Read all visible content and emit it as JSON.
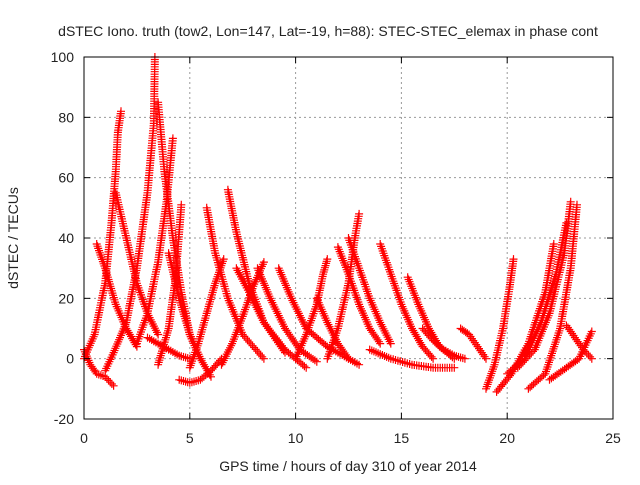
{
  "chart_data": {
    "type": "scatter",
    "title": "dSTEC Iono. truth (tow2, Lon=147, Lat=-19, h=88): STEC-STEC_elemax in phase cont",
    "xlabel": "GPS time / hours of day 310 of year 2014",
    "ylabel": "dSTEC  / TECUs",
    "xlim": [
      0,
      25
    ],
    "ylim": [
      -20,
      100
    ],
    "xticks": [
      "0",
      "5",
      "10",
      "15",
      "20",
      "25"
    ],
    "yticks": [
      "-20",
      "0",
      "20",
      "40",
      "60",
      "80",
      "100"
    ],
    "grid": true,
    "legend": "none",
    "marker": "plus",
    "color": "#ff0000",
    "series": [
      {
        "x": [
          0.0,
          0.5,
          1.0,
          1.3,
          1.5,
          1.6,
          1.75
        ],
        "y": [
          0,
          8,
          25,
          45,
          62,
          75,
          82
        ]
      },
      {
        "x": [
          0.0,
          0.3,
          0.6,
          1.0,
          1.4
        ],
        "y": [
          3,
          -2,
          -5,
          -6,
          -9
        ]
      },
      {
        "x": [
          1.0,
          1.4,
          2.0,
          2.5,
          3.0,
          3.3,
          3.35
        ],
        "y": [
          -4,
          2,
          12,
          30,
          55,
          78,
          100
        ]
      },
      {
        "x": [
          3.5,
          3.8,
          4.2,
          4.6,
          5.0,
          5.5
        ],
        "y": [
          85,
          62,
          40,
          22,
          8,
          0
        ]
      },
      {
        "x": [
          0.6,
          1.0,
          1.5,
          2.0,
          2.5
        ],
        "y": [
          38,
          30,
          18,
          10,
          4
        ]
      },
      {
        "x": [
          1.5,
          2.0,
          2.5,
          3.0,
          3.5
        ],
        "y": [
          55,
          40,
          25,
          15,
          8
        ]
      },
      {
        "x": [
          2.5,
          3.0,
          3.5,
          3.9,
          4.2
        ],
        "y": [
          5,
          15,
          32,
          52,
          73
        ]
      },
      {
        "x": [
          3.5,
          4.0,
          4.3,
          4.5,
          4.6
        ],
        "y": [
          -2,
          10,
          25,
          42,
          51
        ]
      },
      {
        "x": [
          3.0,
          3.5,
          4.0,
          4.5,
          5.0
        ],
        "y": [
          7,
          5,
          3,
          1,
          0
        ]
      },
      {
        "x": [
          4.0,
          4.5,
          5.0,
          5.5,
          6.0
        ],
        "y": [
          35,
          20,
          8,
          0,
          -6
        ]
      },
      {
        "x": [
          4.5,
          5.0,
          5.5,
          6.0,
          6.5
        ],
        "y": [
          -7,
          -8,
          -7,
          -4,
          0
        ]
      },
      {
        "x": [
          5.0,
          5.4,
          5.8,
          6.2,
          6.6
        ],
        "y": [
          -3,
          5,
          15,
          25,
          33
        ]
      },
      {
        "x": [
          5.8,
          6.2,
          6.8,
          7.5,
          8.5
        ],
        "y": [
          50,
          35,
          20,
          8,
          0
        ]
      },
      {
        "x": [
          6.8,
          7.2,
          7.8,
          8.5,
          9.5
        ],
        "y": [
          56,
          42,
          25,
          12,
          2
        ]
      },
      {
        "x": [
          6.5,
          7.0,
          7.5,
          8.0,
          8.5
        ],
        "y": [
          -2,
          5,
          14,
          24,
          32
        ]
      },
      {
        "x": [
          7.2,
          7.8,
          8.5,
          9.5,
          10.5
        ],
        "y": [
          30,
          22,
          12,
          3,
          -3
        ]
      },
      {
        "x": [
          8.2,
          8.8,
          9.5,
          10.2,
          11.0
        ],
        "y": [
          30,
          20,
          10,
          3,
          -1
        ]
      },
      {
        "x": [
          9.2,
          9.8,
          10.5,
          11.5,
          12.5
        ],
        "y": [
          30,
          20,
          10,
          4,
          0
        ]
      },
      {
        "x": [
          10.0,
          10.5,
          11.0,
          11.3,
          11.5
        ],
        "y": [
          0,
          8,
          18,
          28,
          33
        ]
      },
      {
        "x": [
          11.0,
          11.5,
          12.0,
          12.5,
          13.0
        ],
        "y": [
          20,
          12,
          5,
          0,
          -2
        ]
      },
      {
        "x": [
          11.5,
          12.0,
          12.5,
          12.8,
          13.0
        ],
        "y": [
          0,
          10,
          25,
          40,
          48
        ]
      },
      {
        "x": [
          12.0,
          12.5,
          13.0,
          13.5,
          14.0
        ],
        "y": [
          37,
          28,
          18,
          10,
          5
        ]
      },
      {
        "x": [
          12.5,
          13.0,
          13.5,
          14.0,
          14.5
        ],
        "y": [
          40,
          30,
          20,
          12,
          5
        ]
      },
      {
        "x": [
          14.0,
          14.5,
          15.0,
          15.5,
          16.0,
          16.5
        ],
        "y": [
          38,
          28,
          18,
          10,
          4,
          0
        ]
      },
      {
        "x": [
          13.5,
          14.5,
          15.5,
          16.5,
          17.5
        ],
        "y": [
          3,
          0,
          -2,
          -3,
          -3
        ]
      },
      {
        "x": [
          15.3,
          15.8,
          16.3,
          16.8,
          17.5
        ],
        "y": [
          27,
          18,
          10,
          4,
          0
        ]
      },
      {
        "x": [
          16.0,
          16.5,
          17.0,
          17.5,
          18.0
        ],
        "y": [
          10,
          6,
          3,
          1,
          0
        ]
      },
      {
        "x": [
          17.8,
          18.2,
          18.6,
          19.0
        ],
        "y": [
          10,
          8,
          4,
          0
        ]
      },
      {
        "x": [
          19.0,
          19.4,
          19.8,
          20.1,
          20.3
        ],
        "y": [
          -10,
          -2,
          10,
          23,
          33
        ]
      },
      {
        "x": [
          19.5,
          20.2,
          21.0,
          21.8,
          22.2
        ],
        "y": [
          -11,
          -5,
          5,
          22,
          38
        ]
      },
      {
        "x": [
          20.0,
          20.8,
          21.6,
          22.3,
          22.8
        ],
        "y": [
          -5,
          0,
          12,
          28,
          45
        ]
      },
      {
        "x": [
          20.5,
          21.3,
          22.0,
          22.7,
          23.0
        ],
        "y": [
          -3,
          3,
          15,
          35,
          52
        ]
      },
      {
        "x": [
          21.0,
          21.8,
          22.5,
          23.0,
          23.3
        ],
        "y": [
          -10,
          -5,
          10,
          30,
          51
        ]
      },
      {
        "x": [
          22.8,
          23.2,
          23.6,
          24.0
        ],
        "y": [
          11,
          7,
          3,
          0
        ]
      },
      {
        "x": [
          22.0,
          22.8,
          23.4,
          24.0
        ],
        "y": [
          -7,
          -3,
          0,
          9
        ]
      }
    ]
  }
}
